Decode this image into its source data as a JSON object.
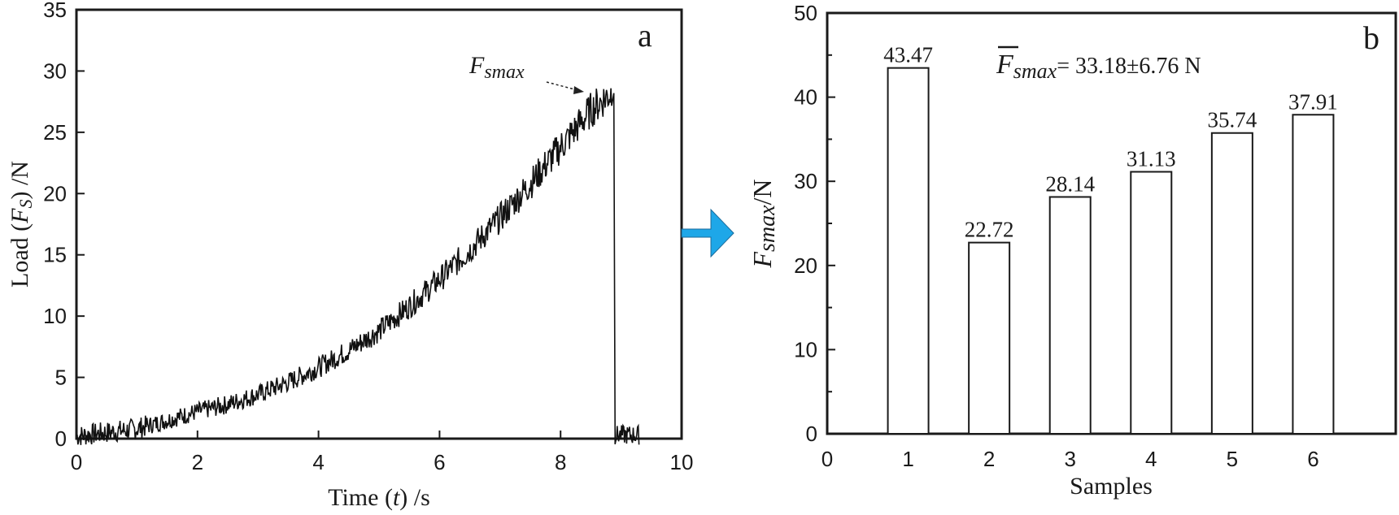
{
  "chart_data": [
    {
      "panel": "a",
      "type": "line",
      "title": "",
      "xlabel": "Time (t) /s",
      "ylabel": "Load (F_s) /N",
      "xlim": [
        0,
        10
      ],
      "ylim": [
        0,
        35
      ],
      "x_ticks": [
        "0",
        "2",
        "4",
        "6",
        "8",
        "10"
      ],
      "y_ticks": [
        "0",
        "5",
        "10",
        "15",
        "20",
        "25",
        "30",
        "35"
      ],
      "grid": false,
      "series": [
        {
          "name": "Load",
          "x": [
            0,
            0.5,
            1.0,
            1.5,
            2.0,
            2.5,
            3.0,
            3.5,
            4.0,
            4.5,
            5.0,
            5.5,
            6.0,
            6.5,
            7.0,
            7.5,
            8.0,
            8.5,
            8.85,
            8.9,
            9.0,
            9.3
          ],
          "y": [
            0.2,
            0.5,
            0.8,
            1.5,
            2.2,
            2.8,
            3.6,
            4.6,
            5.8,
            7.2,
            8.8,
            10.8,
            13.0,
            15.4,
            18.0,
            20.8,
            23.8,
            26.8,
            28.3,
            0.3,
            0.4,
            0.5
          ]
        }
      ],
      "annotations": [
        {
          "text": "F_smax",
          "points_to": [
            8.85,
            28.3
          ]
        },
        {
          "text": "a",
          "role": "panel-label"
        }
      ]
    },
    {
      "panel": "b",
      "type": "bar",
      "title": "",
      "xlabel": "Samples",
      "ylabel": "F_smax/N",
      "categories": [
        "1",
        "2",
        "3",
        "4",
        "5",
        "6"
      ],
      "values": [
        43.47,
        22.72,
        28.14,
        31.13,
        35.74,
        37.91
      ],
      "value_labels": [
        "43.47",
        "22.72",
        "28.14",
        "31.13",
        "35.74",
        "37.91"
      ],
      "x_ticks": [
        "0",
        "1",
        "2",
        "3",
        "4",
        "5",
        "6"
      ],
      "y_ticks": [
        "0",
        "10",
        "20",
        "30",
        "40",
        "50"
      ],
      "ylim": [
        0,
        50
      ],
      "grid": false,
      "annotations": [
        {
          "text": "F̄_smax = 33.18±6.76 N",
          "role": "mean"
        },
        {
          "text": "b",
          "role": "panel-label"
        }
      ]
    }
  ],
  "labels": {
    "a_panel": "a",
    "b_panel": "b",
    "a_xlabel_pre": "Time (",
    "a_xlabel_var": "t",
    "a_xlabel_post": ") /s",
    "a_ylabel_pre": "Load (",
    "a_ylabel_var": "F",
    "a_ylabel_sub": "S",
    "a_ylabel_post": ") /N",
    "peak_F": "F",
    "peak_sub": "smax",
    "b_xlabel": "Samples",
    "b_ylabel_F": "F",
    "b_ylabel_sub": "smax",
    "b_ylabel_unit": "/N",
    "mean_F": "F",
    "mean_sub": "smax",
    "mean_value": "= 33.18±6.76 N"
  },
  "colors": {
    "arrow_fill": "#1ea7e8",
    "arrow_stroke": "#1b6a99",
    "ink": "#1a1a1a"
  }
}
